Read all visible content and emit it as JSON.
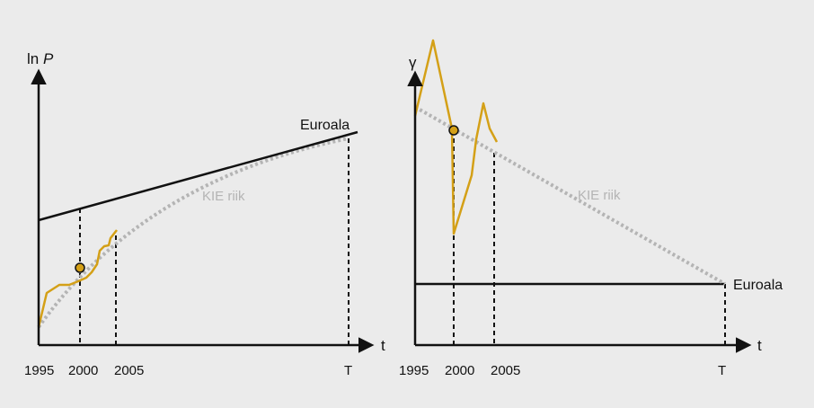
{
  "colors": {
    "background": "#ebebeb",
    "axis": "#111111",
    "euroala_line": "#111111",
    "kie_trend": "#b4b4b4",
    "actual": "#d4a017",
    "marker_fill": "#d4a017"
  },
  "chart_data": [
    {
      "type": "line",
      "title": "",
      "ylabel_prefix": "ln ",
      "ylabel_var": "P",
      "xlabel": "t",
      "x_tick_labels": [
        "1995",
        "2000",
        "2005",
        "T"
      ],
      "series": [
        {
          "name": "Euroala",
          "shape": "straight rising line above the KIE riik curve, meeting it at T"
        },
        {
          "name": "KIE riik",
          "style": "dotted",
          "shape": "concave rising curve converging to Euroala at T"
        },
        {
          "shape": "actual path, 1995–2004",
          "style": "solid"
        }
      ],
      "marker": {
        "x": "2000",
        "on": "actual path"
      },
      "dashed_verticals": [
        "2000",
        "2005",
        "T"
      ]
    },
    {
      "type": "line",
      "title": "",
      "ylabel": "γ",
      "xlabel": "t",
      "x_tick_labels": [
        "1995",
        "2000",
        "2005",
        "T"
      ],
      "series": [
        {
          "name": "Euroala",
          "shape": "flat horizontal level"
        },
        {
          "name": "KIE riik",
          "style": "dotted",
          "shape": "linearly declining line reaching Euroala level at T"
        },
        {
          "shape": "actual path with large swings around 1995–2005",
          "style": "solid"
        }
      ],
      "marker": {
        "x": "2000",
        "on": "actual path"
      },
      "dashed_verticals": [
        "2000",
        "2005",
        "T"
      ]
    }
  ]
}
